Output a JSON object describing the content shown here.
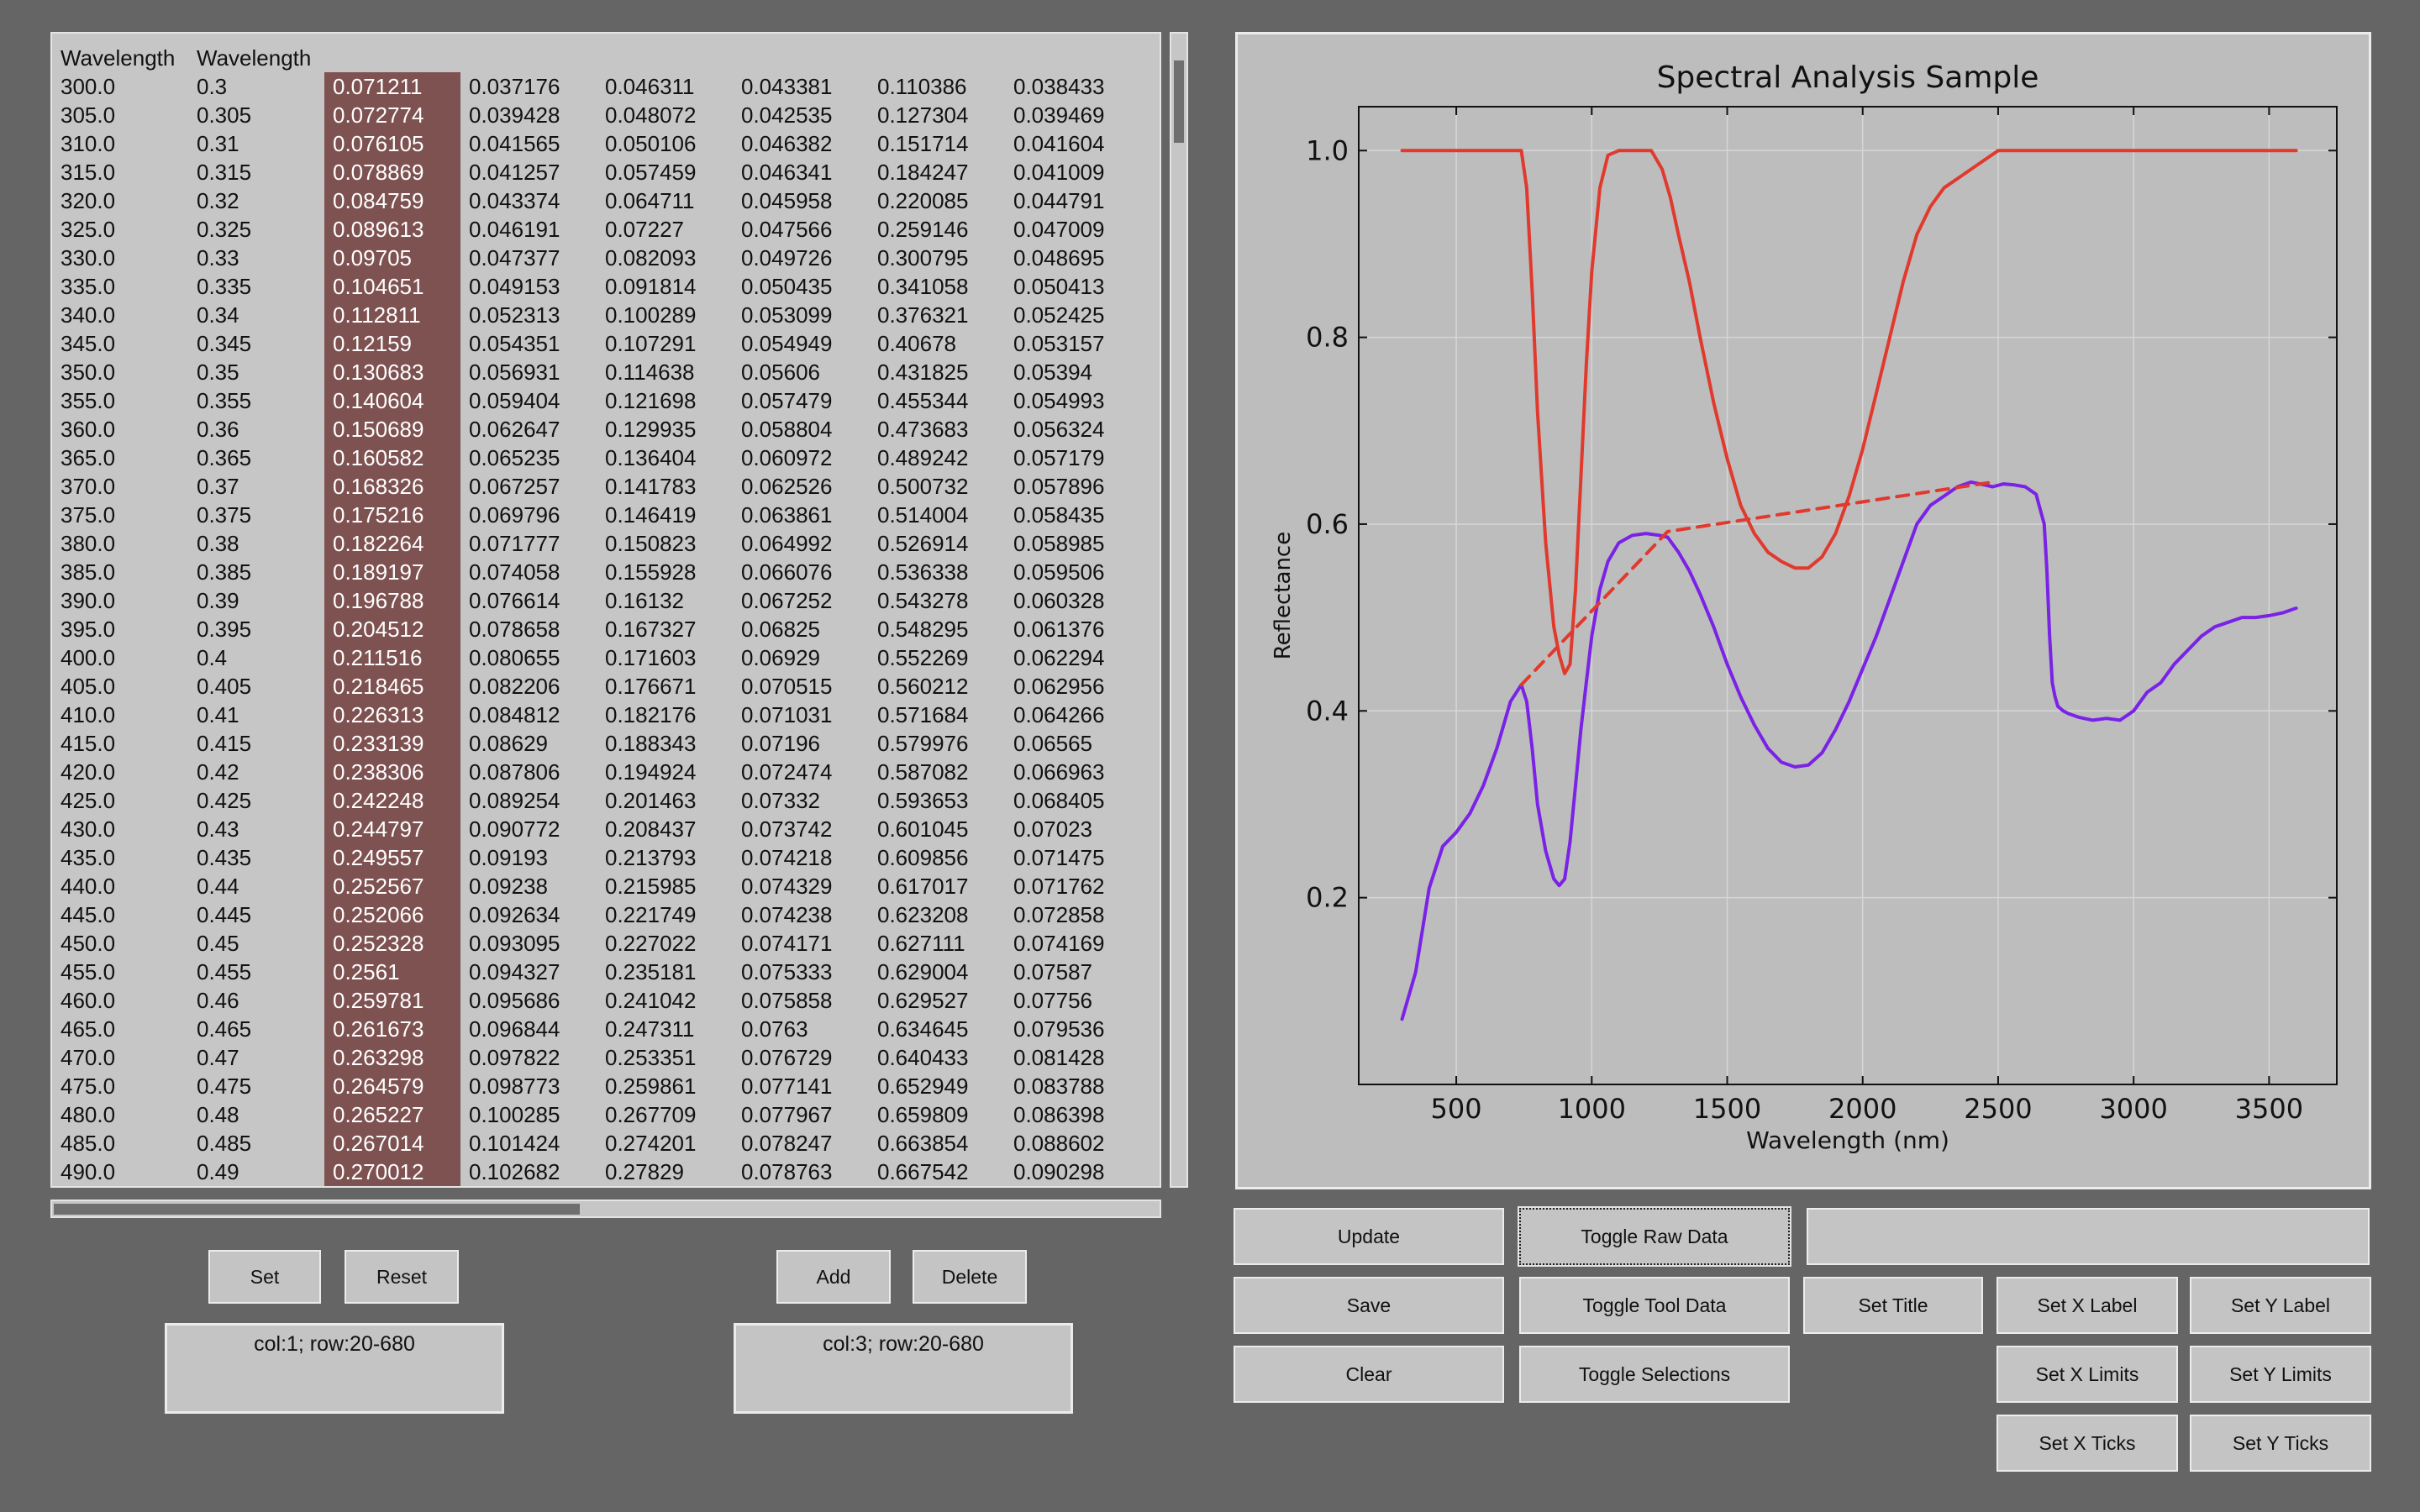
{
  "table": {
    "headers": [
      "Wavelength",
      "Wavelength",
      "",
      "",
      "",
      "",
      "",
      ""
    ],
    "selected_column": 2,
    "rows": [
      [
        "300.0",
        "0.3",
        "0.071211",
        "0.037176",
        "0.046311",
        "0.043381",
        "0.110386",
        "0.038433"
      ],
      [
        "305.0",
        "0.305",
        "0.072774",
        "0.039428",
        "0.048072",
        "0.042535",
        "0.127304",
        "0.039469"
      ],
      [
        "310.0",
        "0.31",
        "0.076105",
        "0.041565",
        "0.050106",
        "0.046382",
        "0.151714",
        "0.041604"
      ],
      [
        "315.0",
        "0.315",
        "0.078869",
        "0.041257",
        "0.057459",
        "0.046341",
        "0.184247",
        "0.041009"
      ],
      [
        "320.0",
        "0.32",
        "0.084759",
        "0.043374",
        "0.064711",
        "0.045958",
        "0.220085",
        "0.044791"
      ],
      [
        "325.0",
        "0.325",
        "0.089613",
        "0.046191",
        "0.07227",
        "0.047566",
        "0.259146",
        "0.047009"
      ],
      [
        "330.0",
        "0.33",
        "0.09705",
        "0.047377",
        "0.082093",
        "0.049726",
        "0.300795",
        "0.048695"
      ],
      [
        "335.0",
        "0.335",
        "0.104651",
        "0.049153",
        "0.091814",
        "0.050435",
        "0.341058",
        "0.050413"
      ],
      [
        "340.0",
        "0.34",
        "0.112811",
        "0.052313",
        "0.100289",
        "0.053099",
        "0.376321",
        "0.052425"
      ],
      [
        "345.0",
        "0.345",
        "0.12159",
        "0.054351",
        "0.107291",
        "0.054949",
        "0.40678",
        "0.053157"
      ],
      [
        "350.0",
        "0.35",
        "0.130683",
        "0.056931",
        "0.114638",
        "0.05606",
        "0.431825",
        "0.05394"
      ],
      [
        "355.0",
        "0.355",
        "0.140604",
        "0.059404",
        "0.121698",
        "0.057479",
        "0.455344",
        "0.054993"
      ],
      [
        "360.0",
        "0.36",
        "0.150689",
        "0.062647",
        "0.129935",
        "0.058804",
        "0.473683",
        "0.056324"
      ],
      [
        "365.0",
        "0.365",
        "0.160582",
        "0.065235",
        "0.136404",
        "0.060972",
        "0.489242",
        "0.057179"
      ],
      [
        "370.0",
        "0.37",
        "0.168326",
        "0.067257",
        "0.141783",
        "0.062526",
        "0.500732",
        "0.057896"
      ],
      [
        "375.0",
        "0.375",
        "0.175216",
        "0.069796",
        "0.146419",
        "0.063861",
        "0.514004",
        "0.058435"
      ],
      [
        "380.0",
        "0.38",
        "0.182264",
        "0.071777",
        "0.150823",
        "0.064992",
        "0.526914",
        "0.058985"
      ],
      [
        "385.0",
        "0.385",
        "0.189197",
        "0.074058",
        "0.155928",
        "0.066076",
        "0.536338",
        "0.059506"
      ],
      [
        "390.0",
        "0.39",
        "0.196788",
        "0.076614",
        "0.16132",
        "0.067252",
        "0.543278",
        "0.060328"
      ],
      [
        "395.0",
        "0.395",
        "0.204512",
        "0.078658",
        "0.167327",
        "0.06825",
        "0.548295",
        "0.061376"
      ],
      [
        "400.0",
        "0.4",
        "0.211516",
        "0.080655",
        "0.171603",
        "0.06929",
        "0.552269",
        "0.062294"
      ],
      [
        "405.0",
        "0.405",
        "0.218465",
        "0.082206",
        "0.176671",
        "0.070515",
        "0.560212",
        "0.062956"
      ],
      [
        "410.0",
        "0.41",
        "0.226313",
        "0.084812",
        "0.182176",
        "0.071031",
        "0.571684",
        "0.064266"
      ],
      [
        "415.0",
        "0.415",
        "0.233139",
        "0.08629",
        "0.188343",
        "0.07196",
        "0.579976",
        "0.06565"
      ],
      [
        "420.0",
        "0.42",
        "0.238306",
        "0.087806",
        "0.194924",
        "0.072474",
        "0.587082",
        "0.066963"
      ],
      [
        "425.0",
        "0.425",
        "0.242248",
        "0.089254",
        "0.201463",
        "0.07332",
        "0.593653",
        "0.068405"
      ],
      [
        "430.0",
        "0.43",
        "0.244797",
        "0.090772",
        "0.208437",
        "0.073742",
        "0.601045",
        "0.07023"
      ],
      [
        "435.0",
        "0.435",
        "0.249557",
        "0.09193",
        "0.213793",
        "0.074218",
        "0.609856",
        "0.071475"
      ],
      [
        "440.0",
        "0.44",
        "0.252567",
        "0.09238",
        "0.215985",
        "0.074329",
        "0.617017",
        "0.071762"
      ],
      [
        "445.0",
        "0.445",
        "0.252066",
        "0.092634",
        "0.221749",
        "0.074238",
        "0.623208",
        "0.072858"
      ],
      [
        "450.0",
        "0.45",
        "0.252328",
        "0.093095",
        "0.227022",
        "0.074171",
        "0.627111",
        "0.074169"
      ],
      [
        "455.0",
        "0.455",
        "0.2561",
        "0.094327",
        "0.235181",
        "0.075333",
        "0.629004",
        "0.07587"
      ],
      [
        "460.0",
        "0.46",
        "0.259781",
        "0.095686",
        "0.241042",
        "0.075858",
        "0.629527",
        "0.07756"
      ],
      [
        "465.0",
        "0.465",
        "0.261673",
        "0.096844",
        "0.247311",
        "0.0763",
        "0.634645",
        "0.079536"
      ],
      [
        "470.0",
        "0.47",
        "0.263298",
        "0.097822",
        "0.253351",
        "0.076729",
        "0.640433",
        "0.081428"
      ],
      [
        "475.0",
        "0.475",
        "0.264579",
        "0.098773",
        "0.259861",
        "0.077141",
        "0.652949",
        "0.083788"
      ],
      [
        "480.0",
        "0.48",
        "0.265227",
        "0.100285",
        "0.267709",
        "0.077967",
        "0.659809",
        "0.086398"
      ],
      [
        "485.0",
        "0.485",
        "0.267014",
        "0.101424",
        "0.274201",
        "0.078247",
        "0.663854",
        "0.088602"
      ],
      [
        "490.0",
        "0.49",
        "0.270012",
        "0.102682",
        "0.27829",
        "0.078763",
        "0.667542",
        "0.090298"
      ]
    ]
  },
  "left_controls": {
    "set_label": "Set",
    "reset_label": "Reset",
    "add_label": "Add",
    "delete_label": "Delete",
    "selection_a": "col:1; row:20-680",
    "selection_b": "col:3; row:20-680"
  },
  "right_controls": {
    "update_label": "Update",
    "toggle_raw_label": "Toggle Raw Data",
    "title_input_value": "",
    "save_label": "Save",
    "toggle_tool_label": "Toggle Tool Data",
    "set_title_label": "Set Title",
    "set_x_label_label": "Set X Label",
    "set_y_label_label": "Set Y Label",
    "clear_label": "Clear",
    "toggle_selections_label": "Toggle Selections",
    "set_x_limits_label": "Set X Limits",
    "set_y_limits_label": "Set Y Limits",
    "set_x_ticks_label": "Set X Ticks",
    "set_y_ticks_label": "Set Y Ticks"
  },
  "chart_data": {
    "type": "line",
    "title": "Spectral Analysis Sample",
    "xlabel": "Wavelength (nm)",
    "ylabel": "Reflectance",
    "xlim": [
      140,
      3750
    ],
    "ylim": [
      0.0,
      1.047
    ],
    "xticks": [
      500,
      1000,
      1500,
      2000,
      2500,
      3000,
      3500
    ],
    "yticks": [
      0.2,
      0.4,
      0.6,
      0.8,
      1.0
    ],
    "xtick_labels": [
      "500",
      "1000",
      "1500",
      "2000",
      "2500",
      "3000",
      "3500"
    ],
    "ytick_labels": [
      "0.2",
      "0.4",
      "0.6",
      "0.8",
      "1.0"
    ],
    "grid": true,
    "colors": {
      "spectrum": "#7a22e6",
      "continuum_removed": "#e03a2e",
      "hull": "#e03a2e"
    },
    "series": [
      {
        "style": "solid",
        "color": "#7a22e6",
        "x": [
          300,
          350,
          400,
          450,
          500,
          550,
          600,
          650,
          700,
          740,
          760,
          780,
          800,
          830,
          860,
          880,
          900,
          920,
          940,
          960,
          980,
          1000,
          1030,
          1060,
          1100,
          1150,
          1200,
          1250,
          1280,
          1320,
          1360,
          1400,
          1450,
          1500,
          1550,
          1600,
          1650,
          1700,
          1750,
          1800,
          1850,
          1900,
          1950,
          2000,
          2050,
          2100,
          2150,
          2200,
          2250,
          2300,
          2350,
          2400,
          2450,
          2480,
          2520,
          2560,
          2600,
          2640,
          2670,
          2680,
          2690,
          2700,
          2710,
          2720,
          2740,
          2760,
          2800,
          2850,
          2900,
          2950,
          3000,
          3050,
          3100,
          3150,
          3200,
          3250,
          3300,
          3350,
          3400,
          3450,
          3500,
          3550,
          3600
        ],
        "y": [
          0.07,
          0.12,
          0.21,
          0.255,
          0.27,
          0.29,
          0.32,
          0.36,
          0.41,
          0.428,
          0.41,
          0.36,
          0.3,
          0.25,
          0.22,
          0.213,
          0.22,
          0.26,
          0.32,
          0.38,
          0.43,
          0.48,
          0.53,
          0.56,
          0.58,
          0.588,
          0.59,
          0.588,
          0.586,
          0.57,
          0.55,
          0.525,
          0.49,
          0.45,
          0.415,
          0.385,
          0.36,
          0.345,
          0.34,
          0.342,
          0.355,
          0.38,
          0.41,
          0.445,
          0.48,
          0.52,
          0.56,
          0.6,
          0.62,
          0.63,
          0.64,
          0.645,
          0.642,
          0.64,
          0.643,
          0.642,
          0.64,
          0.632,
          0.6,
          0.55,
          0.48,
          0.43,
          0.415,
          0.405,
          0.4,
          0.397,
          0.393,
          0.39,
          0.392,
          0.39,
          0.4,
          0.42,
          0.43,
          0.45,
          0.465,
          0.48,
          0.49,
          0.495,
          0.5,
          0.5,
          0.502,
          0.505,
          0.51
        ]
      },
      {
        "style": "dashed",
        "color": "#e03a2e",
        "x": [
          740,
          1280,
          2480
        ],
        "y": [
          0.428,
          0.592,
          0.645
        ]
      },
      {
        "style": "solid",
        "color": "#e03a2e",
        "x": [
          300,
          700,
          740,
          760,
          780,
          800,
          830,
          860,
          880,
          900,
          920,
          940,
          960,
          980,
          1000,
          1030,
          1060,
          1100,
          1150,
          1220,
          1260,
          1290,
          1320,
          1360,
          1400,
          1450,
          1500,
          1550,
          1600,
          1650,
          1700,
          1750,
          1800,
          1850,
          1900,
          1950,
          2000,
          2050,
          2100,
          2150,
          2200,
          2250,
          2300,
          2350,
          2400,
          2450,
          2500,
          3600
        ],
        "y": [
          1.0,
          1.0,
          1.0,
          0.96,
          0.85,
          0.72,
          0.58,
          0.49,
          0.46,
          0.44,
          0.45,
          0.53,
          0.65,
          0.77,
          0.87,
          0.96,
          0.995,
          1.0,
          1.0,
          1.0,
          0.98,
          0.95,
          0.91,
          0.86,
          0.8,
          0.73,
          0.67,
          0.62,
          0.59,
          0.57,
          0.56,
          0.553,
          0.553,
          0.565,
          0.59,
          0.63,
          0.68,
          0.74,
          0.8,
          0.86,
          0.91,
          0.94,
          0.96,
          0.97,
          0.98,
          0.99,
          1.0,
          1.0
        ]
      }
    ]
  }
}
